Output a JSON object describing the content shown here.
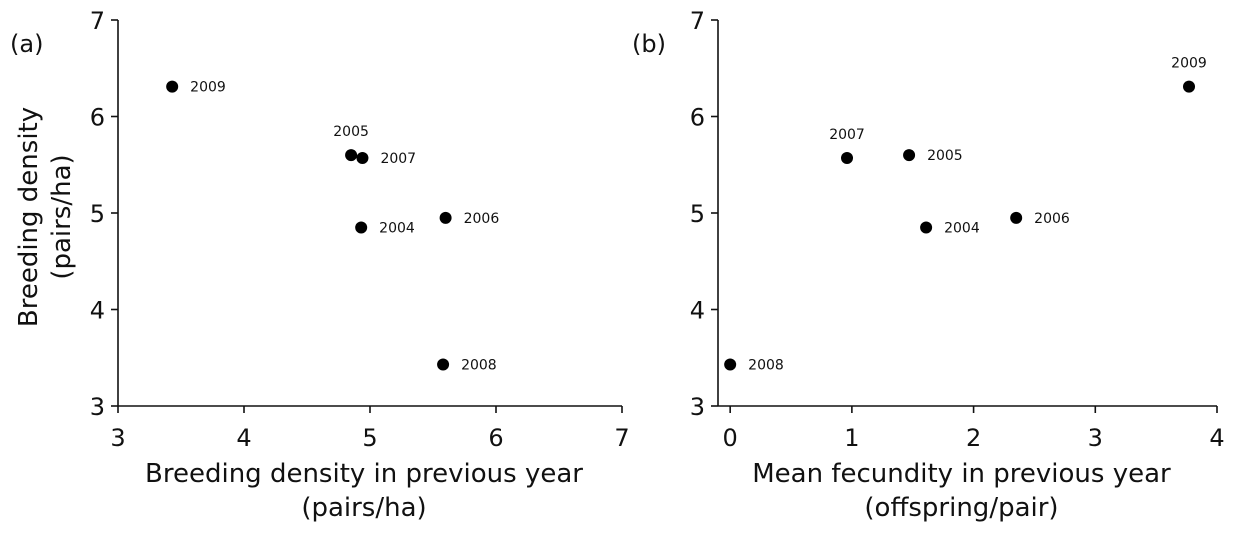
{
  "chart_data": [
    {
      "type": "scatter",
      "panel_label": "(a)",
      "xlabel": [
        "Breeding density in previous year",
        "(pairs/ha)"
      ],
      "ylabel": [
        "Breeding density",
        "(pairs/ha)"
      ],
      "xlim": [
        3,
        7
      ],
      "ylim": [
        3,
        7
      ],
      "xticks": [
        3,
        4,
        5,
        6,
        7
      ],
      "yticks": [
        3,
        4,
        5,
        6,
        7
      ],
      "grid": false,
      "points": [
        {
          "label": "2009",
          "x": 3.43,
          "y": 6.31,
          "label_pos": "right"
        },
        {
          "label": "2005",
          "x": 4.85,
          "y": 5.6,
          "label_pos": "above"
        },
        {
          "label": "2007",
          "x": 4.94,
          "y": 5.57,
          "label_pos": "right"
        },
        {
          "label": "2004",
          "x": 4.93,
          "y": 4.85,
          "label_pos": "right"
        },
        {
          "label": "2006",
          "x": 5.6,
          "y": 4.95,
          "label_pos": "right"
        },
        {
          "label": "2008",
          "x": 5.58,
          "y": 3.43,
          "label_pos": "right"
        }
      ]
    },
    {
      "type": "scatter",
      "panel_label": "(b)",
      "xlabel": [
        "Mean fecundity in previous year",
        "(offspring/pair)"
      ],
      "ylabel": [
        "",
        ""
      ],
      "xlim": [
        -0.1,
        4
      ],
      "ylim": [
        3,
        7
      ],
      "xticks": [
        0,
        1,
        2,
        3,
        4
      ],
      "yticks": [
        3,
        4,
        5,
        6,
        7
      ],
      "grid": false,
      "points": [
        {
          "label": "2007",
          "x": 0.96,
          "y": 5.57,
          "label_pos": "above"
        },
        {
          "label": "2005",
          "x": 1.47,
          "y": 5.6,
          "label_pos": "right"
        },
        {
          "label": "2004",
          "x": 1.61,
          "y": 4.85,
          "label_pos": "right"
        },
        {
          "label": "2006",
          "x": 2.35,
          "y": 4.95,
          "label_pos": "right"
        },
        {
          "label": "2009",
          "x": 3.77,
          "y": 6.31,
          "label_pos": "above"
        },
        {
          "label": "2008",
          "x": 0.0,
          "y": 3.43,
          "label_pos": "right"
        }
      ]
    }
  ]
}
